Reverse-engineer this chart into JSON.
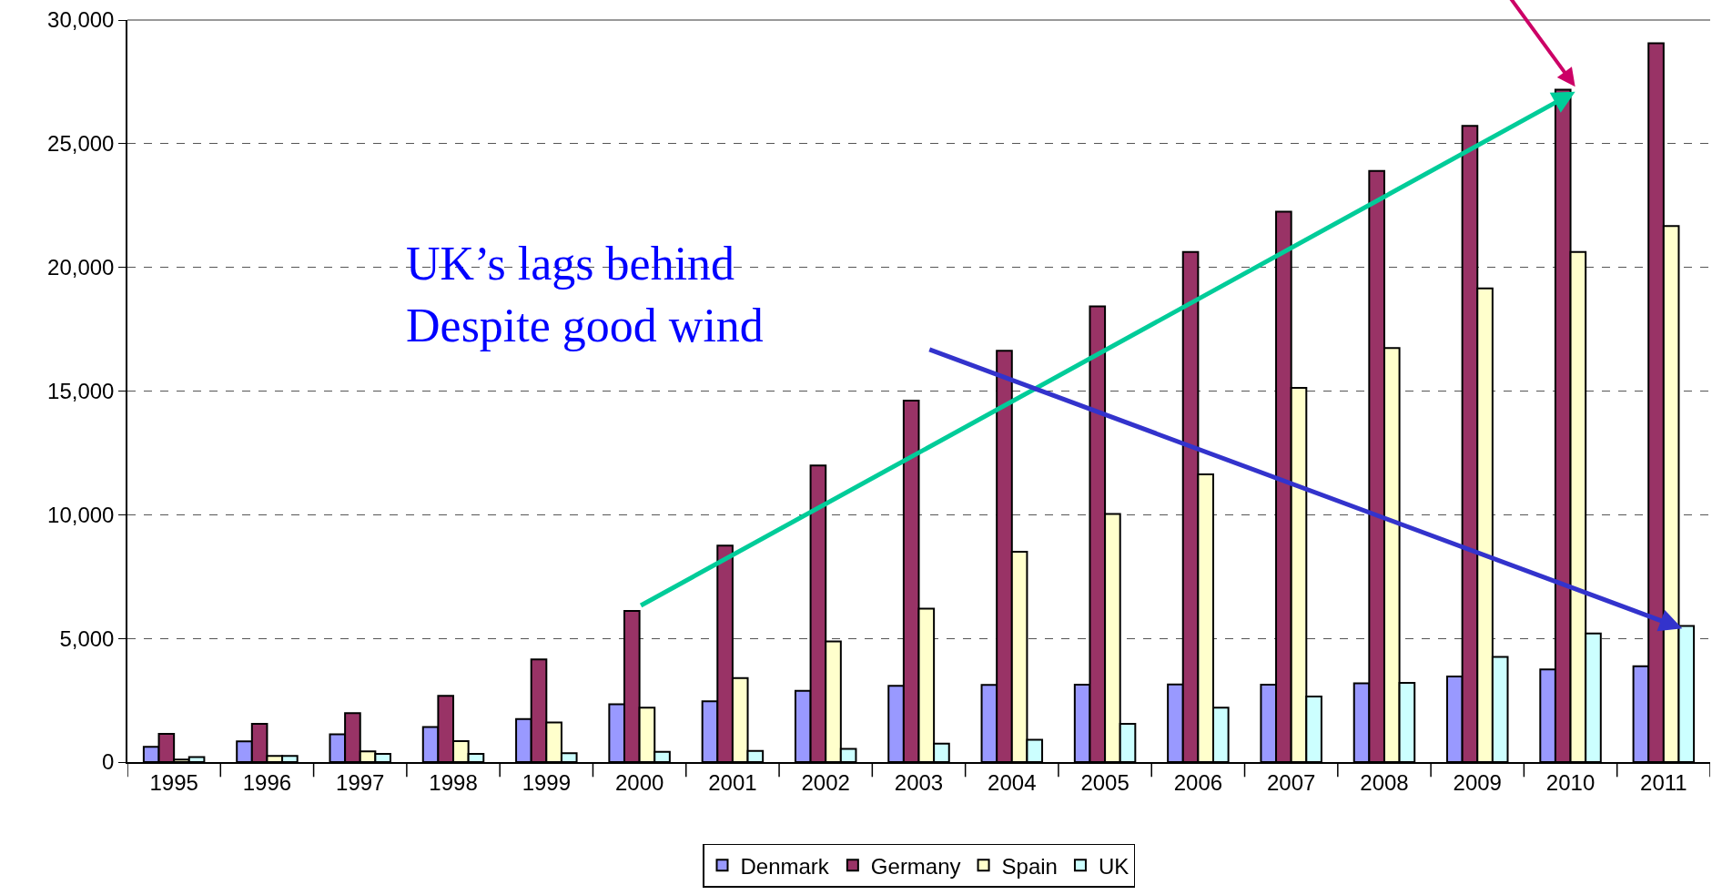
{
  "chart_data": {
    "type": "bar",
    "categories": [
      "1995",
      "1996",
      "1997",
      "1998",
      "1999",
      "2000",
      "2001",
      "2002",
      "2003",
      "2004",
      "2005",
      "2006",
      "2007",
      "2008",
      "2009",
      "2010",
      "2011"
    ],
    "series": [
      {
        "name": "Denmark",
        "color": "#9999ff",
        "values": [
          620,
          840,
          1120,
          1420,
          1740,
          2340,
          2460,
          2880,
          3080,
          3120,
          3130,
          3140,
          3130,
          3180,
          3460,
          3750,
          3870
        ]
      },
      {
        "name": "Germany",
        "color": "#993366",
        "values": [
          1140,
          1550,
          1980,
          2680,
          4150,
          6110,
          8750,
          11990,
          14610,
          16630,
          18420,
          20620,
          22250,
          23900,
          25720,
          27180,
          29060
        ]
      },
      {
        "name": "Spain",
        "color": "#ffffcc",
        "values": [
          100,
          250,
          430,
          850,
          1600,
          2200,
          3400,
          4880,
          6200,
          8500,
          10030,
          11630,
          15130,
          16740,
          19150,
          20620,
          21670
        ]
      },
      {
        "name": "UK",
        "color": "#ccffff",
        "values": [
          200,
          250,
          330,
          330,
          360,
          410,
          450,
          530,
          750,
          900,
          1550,
          2200,
          2650,
          3200,
          4250,
          5200,
          5500
        ]
      }
    ],
    "ylim": [
      0,
      30000
    ],
    "yticks": [
      {
        "value": 0,
        "label": "0"
      },
      {
        "value": 5000,
        "label": "5,000"
      },
      {
        "value": 10000,
        "label": "10,000"
      },
      {
        "value": 15000,
        "label": "15,000"
      },
      {
        "value": 20000,
        "label": "20,000"
      },
      {
        "value": 25000,
        "label": "25,000"
      },
      {
        "value": 30000,
        "label": "30,000"
      }
    ],
    "grid": "y",
    "legend": "bottom",
    "annotations": [
      "UK’s lags behind\nDespite good wind"
    ]
  }
}
